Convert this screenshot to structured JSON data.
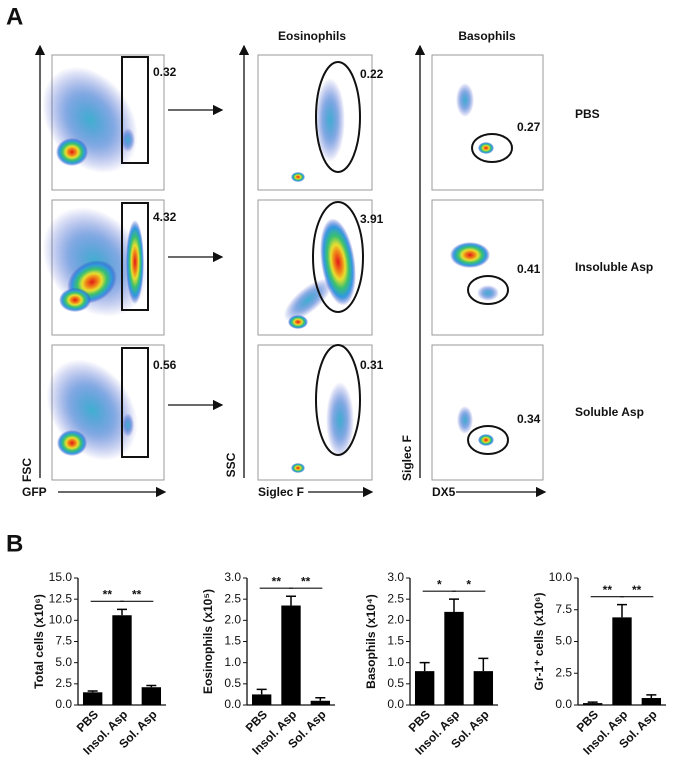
{
  "panel_a": {
    "label": "A",
    "columns": [
      "Eosinophils",
      "Basophils"
    ],
    "rows": [
      "PBS",
      "Insoluble Asp",
      "Soluble Asp"
    ],
    "axes": {
      "fsc": "FSC",
      "gfp": "GFP",
      "ssc": "SSC",
      "siglec_f_x": "Siglec F",
      "siglec_f_y": "Siglec F",
      "dx5": "DX5"
    },
    "gates": {
      "gfp": [
        0.32,
        4.32,
        0.56
      ],
      "eosinophils": [
        0.22,
        3.91,
        0.31
      ],
      "basophils": [
        0.27,
        0.41,
        0.34
      ]
    }
  },
  "panel_b": {
    "label": "B"
  },
  "chart_data": [
    {
      "type": "bar",
      "ylabel": "Total cells (x10⁶)",
      "categories": [
        "PBS",
        "Insol. Asp",
        "Sol. Asp"
      ],
      "values": [
        1.5,
        10.6,
        2.1
      ],
      "errors": [
        0.15,
        0.7,
        0.2
      ],
      "color": "#000000",
      "ylim": [
        0,
        15
      ],
      "yticks": [
        {
          "value": 0,
          "label": "0.0"
        },
        {
          "value": 2.5,
          "label": "2.5"
        },
        {
          "value": 5,
          "label": "5.0"
        },
        {
          "value": 7.5,
          "label": "7.5"
        },
        {
          "value": 10,
          "label": "10.0"
        },
        {
          "value": 12.5,
          "label": "12.5"
        },
        {
          "value": 15,
          "label": "15.0"
        }
      ],
      "annotations": [
        "**",
        "**"
      ]
    },
    {
      "type": "bar",
      "ylabel": "Eosinophils (x10⁵)",
      "categories": [
        "PBS",
        "Insol. Asp",
        "Sol. Asp"
      ],
      "values": [
        0.25,
        2.35,
        0.1
      ],
      "errors": [
        0.12,
        0.22,
        0.07
      ],
      "color": "#000000",
      "ylim": [
        0,
        3
      ],
      "yticks": [
        {
          "value": 0,
          "label": "0.0"
        },
        {
          "value": 0.5,
          "label": "0.5"
        },
        {
          "value": 1,
          "label": "1.0"
        },
        {
          "value": 1.5,
          "label": "1.5"
        },
        {
          "value": 2,
          "label": "2.0"
        },
        {
          "value": 2.5,
          "label": "2.5"
        },
        {
          "value": 3,
          "label": "3.0"
        }
      ],
      "annotations": [
        "**",
        "**"
      ]
    },
    {
      "type": "bar",
      "ylabel": "Basophils (x10⁴)",
      "categories": [
        "PBS",
        "Insol. Asp",
        "Sol. Asp"
      ],
      "values": [
        0.8,
        2.2,
        0.8
      ],
      "errors": [
        0.2,
        0.3,
        0.3
      ],
      "color": "#000000",
      "ylim": [
        0,
        3
      ],
      "yticks": [
        {
          "value": 0,
          "label": "0.0"
        },
        {
          "value": 0.5,
          "label": "0.5"
        },
        {
          "value": 1,
          "label": "1.0"
        },
        {
          "value": 1.5,
          "label": "1.5"
        },
        {
          "value": 2,
          "label": "2.0"
        },
        {
          "value": 2.5,
          "label": "2.5"
        },
        {
          "value": 3,
          "label": "3.0"
        }
      ],
      "annotations": [
        "*",
        "*"
      ]
    },
    {
      "type": "bar",
      "ylabel": "Gr-1⁺ cells (x10⁶)",
      "categories": [
        "PBS",
        "Insol. Asp",
        "Sol. Asp"
      ],
      "values": [
        0.15,
        6.9,
        0.55
      ],
      "errors": [
        0.08,
        1.0,
        0.25
      ],
      "color": "#000000",
      "ylim": [
        0,
        10
      ],
      "yticks": [
        {
          "value": 0,
          "label": "0.0"
        },
        {
          "value": 2.5,
          "label": "2.5"
        },
        {
          "value": 5,
          "label": "5.0"
        },
        {
          "value": 7.5,
          "label": "7.5"
        },
        {
          "value": 10,
          "label": "10.0"
        }
      ],
      "annotations": [
        "**",
        "**"
      ]
    }
  ]
}
